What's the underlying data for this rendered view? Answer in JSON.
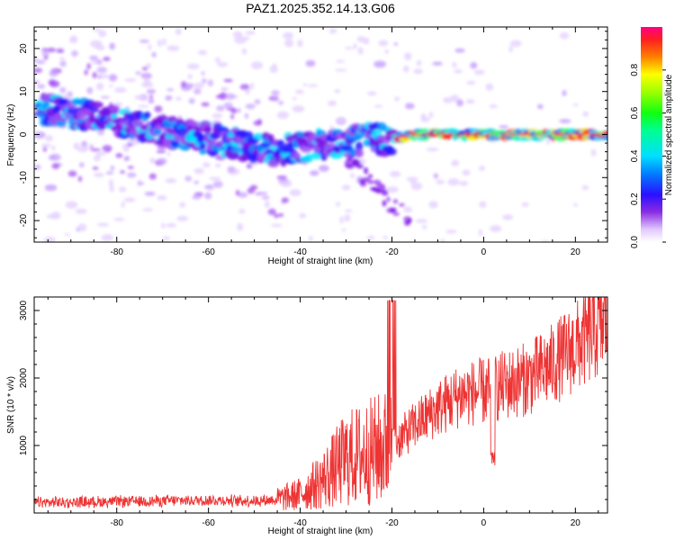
{
  "title": "PAZ1.2025.352.14.13.G06",
  "colors": {
    "snr_line": "#ee3333",
    "axis": "#000000",
    "ridge_core": "#ff2020"
  },
  "chart_data": [
    {
      "type": "heatmap",
      "name": "spectrogram",
      "title": "PAZ1.2025.352.14.13.G06",
      "xlabel": "Height of straight line (km)",
      "ylabel": "Frequency (Hz)",
      "xlim": [
        -98,
        27
      ],
      "ylim": [
        -25,
        25
      ],
      "xticks": [
        -80,
        -60,
        -40,
        -20,
        0,
        20
      ],
      "yticks": [
        -20,
        -10,
        0,
        10,
        20
      ],
      "ridge": {
        "description_points_x": [
          -95,
          -85,
          -75,
          -65,
          -55,
          -45,
          -35,
          -25,
          -20,
          -15,
          -5,
          5,
          15,
          27
        ],
        "frequency_hz": [
          6,
          4,
          2,
          0,
          -2,
          -4,
          -2,
          -1,
          -1,
          0,
          0,
          0,
          0,
          0
        ]
      },
      "colorbar": {
        "label": "Normalized spectral amplitude",
        "ticks": [
          "0.0",
          "0.2",
          "0.4",
          "0.6",
          "0.8"
        ],
        "range": [
          0,
          1
        ]
      }
    },
    {
      "type": "line",
      "name": "snr",
      "xlabel": "Height of straight line (km)",
      "ylabel": "SNR (10 * v/v)",
      "xlim": [
        -98,
        27
      ],
      "ylim": [
        0,
        3200
      ],
      "xticks": [
        -80,
        -60,
        -40,
        -20,
        0,
        20
      ],
      "yticks": [
        1000,
        2000,
        3000
      ],
      "trend": {
        "x": [
          -98,
          -90,
          -80,
          -70,
          -60,
          -50,
          -45,
          -40,
          -35,
          -30,
          -25,
          -20,
          -15,
          -10,
          -5,
          0,
          5,
          10,
          15,
          20,
          27
        ],
        "y": [
          150,
          160,
          170,
          180,
          190,
          180,
          200,
          280,
          500,
          800,
          900,
          1000,
          1300,
          1550,
          1750,
          1800,
          1900,
          2000,
          2200,
          2450,
          2850
        ]
      }
    }
  ]
}
